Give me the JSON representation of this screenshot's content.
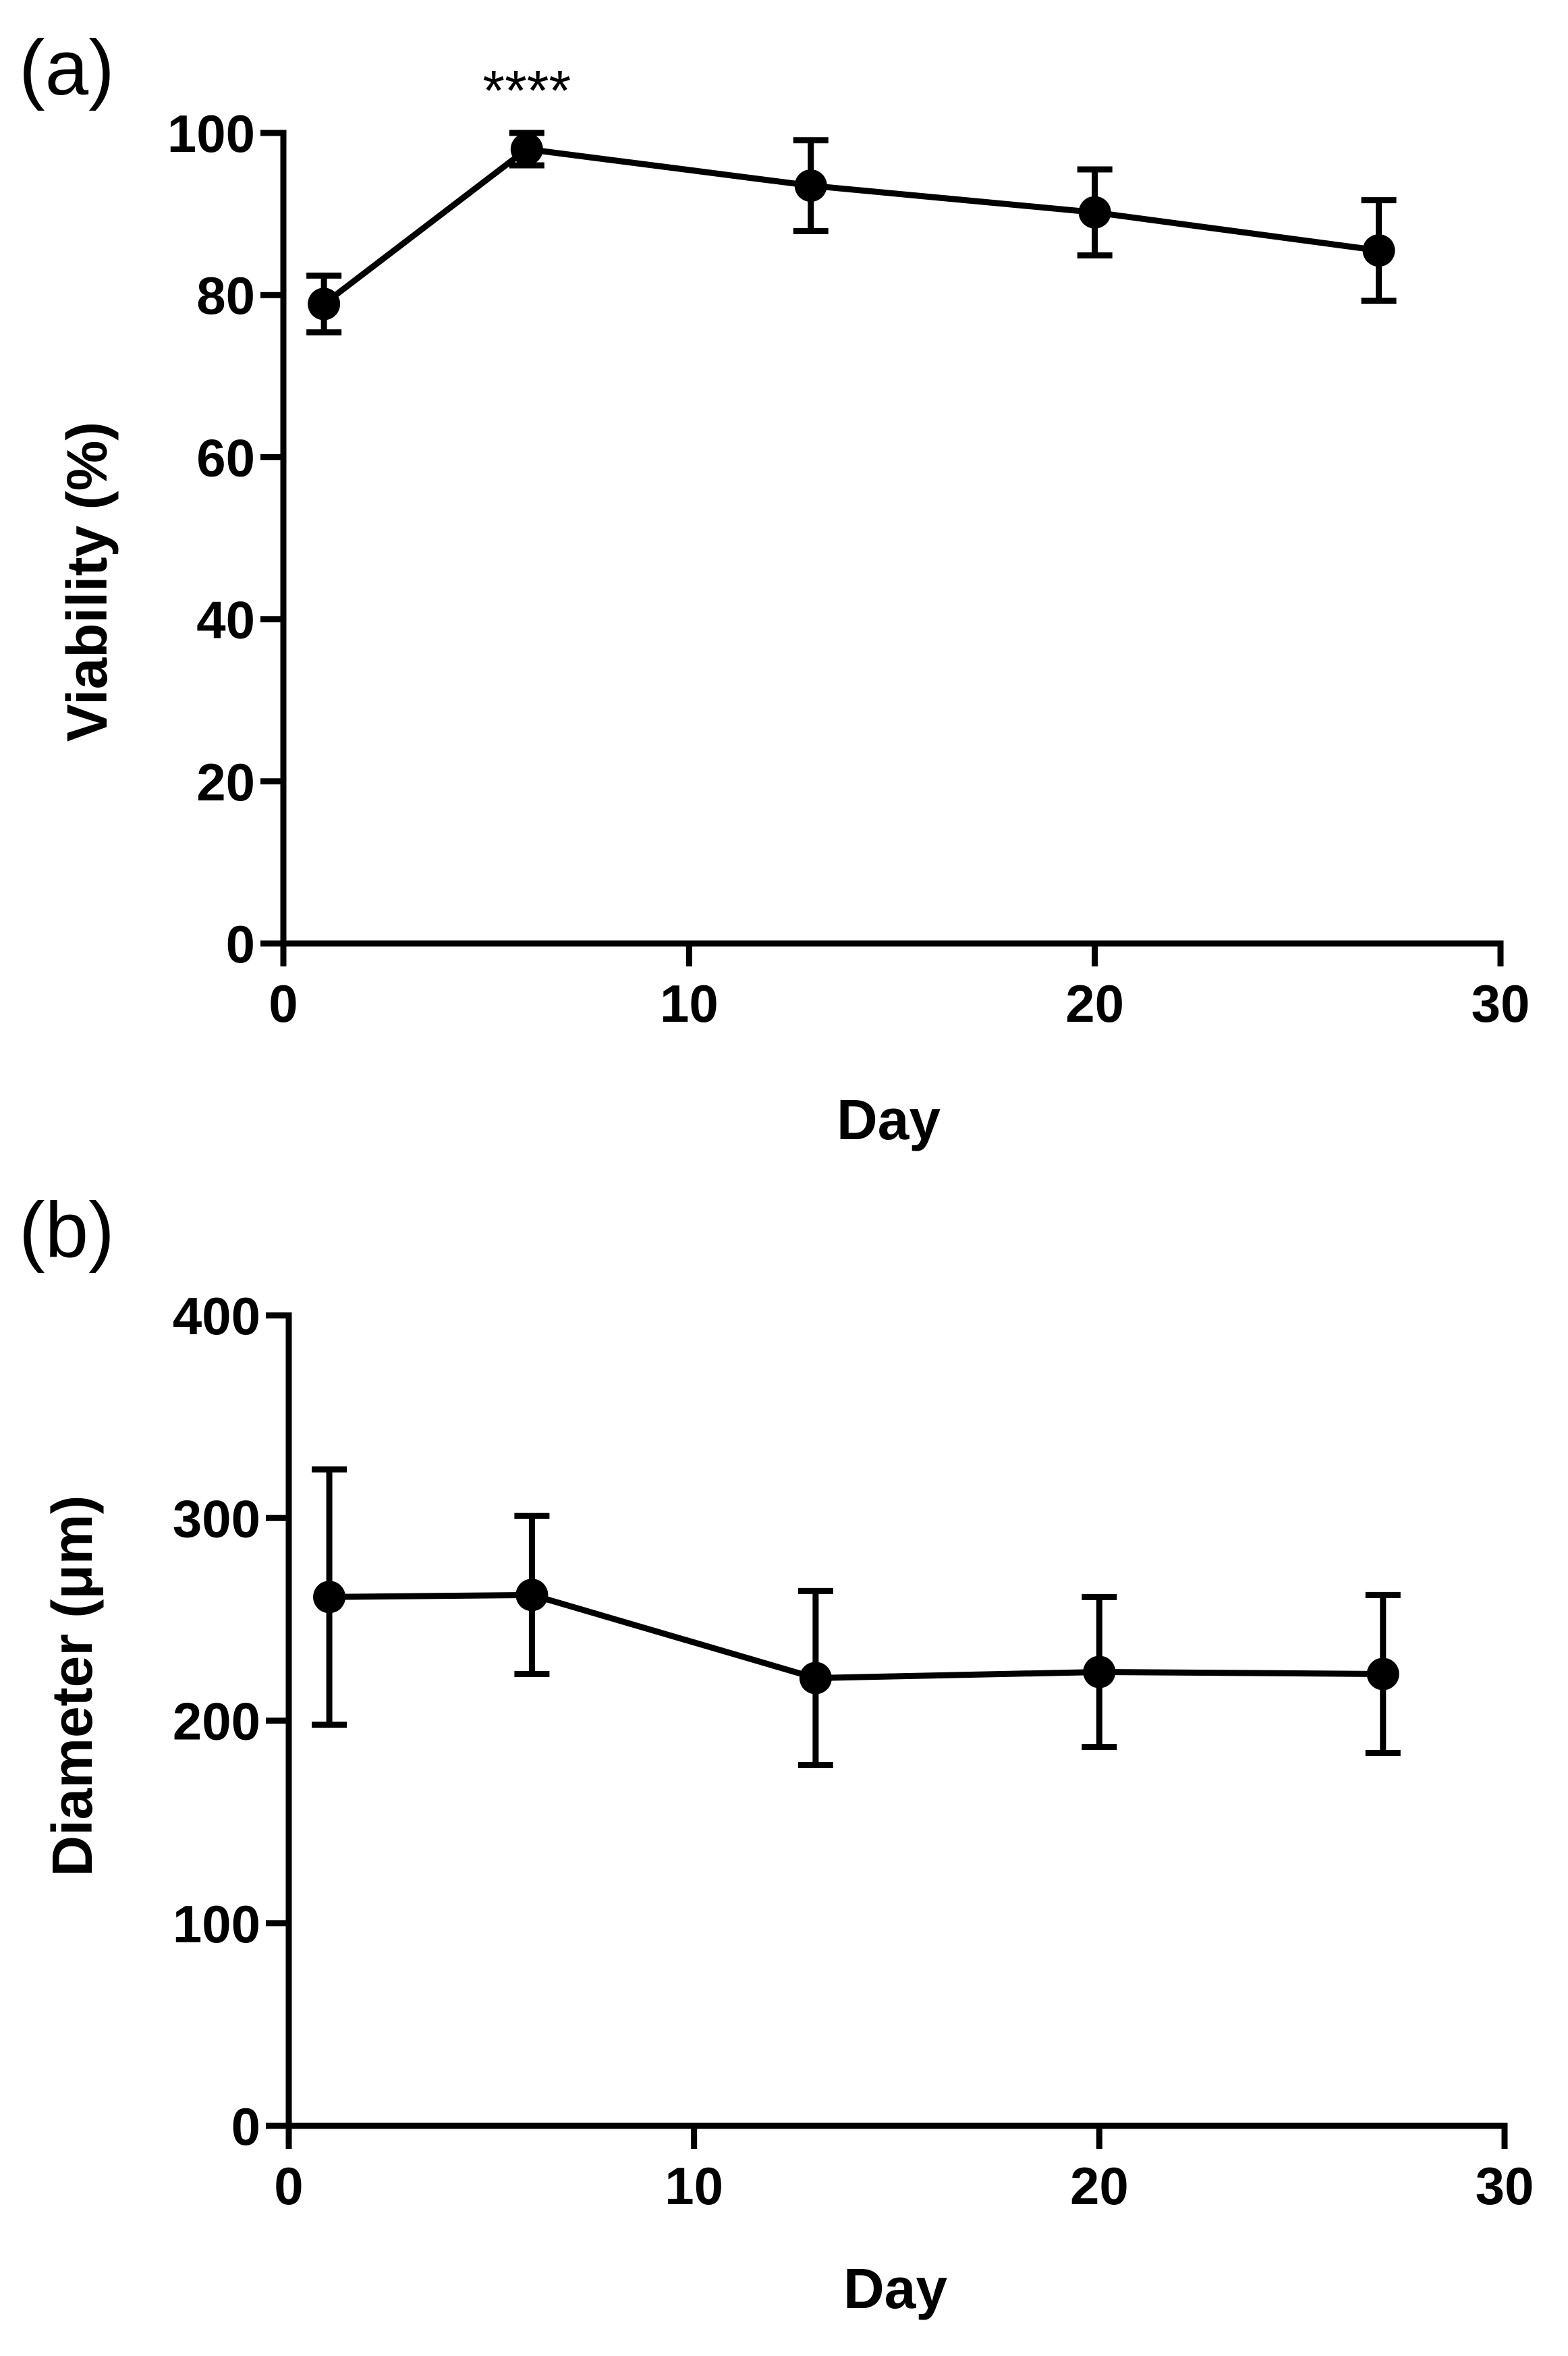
{
  "chart_data": [
    {
      "panel": "(a)",
      "type": "line",
      "xlabel": "Day",
      "ylabel": "Viability (%)",
      "xlim": [
        0,
        30
      ],
      "ylim": [
        0,
        100
      ],
      "xticks": [
        0,
        10,
        20,
        30
      ],
      "yticks": [
        0,
        20,
        40,
        60,
        80,
        100
      ],
      "x": [
        1,
        6,
        13,
        20,
        27
      ],
      "values": [
        78.9,
        98.0,
        93.5,
        90.2,
        85.5
      ],
      "errors": [
        3.5,
        2.0,
        5.6,
        5.3,
        6.2
      ],
      "annotations": [
        {
          "x": 6,
          "text": "****"
        }
      ],
      "grid": false,
      "marker": "circle"
    },
    {
      "panel": "(b)",
      "type": "line",
      "xlabel": "Day",
      "ylabel": "Diameter (μm)",
      "xlim": [
        0,
        30
      ],
      "ylim": [
        0,
        400
      ],
      "xticks": [
        0,
        10,
        20,
        30
      ],
      "yticks": [
        0,
        100,
        200,
        300,
        400
      ],
      "x": [
        1,
        6,
        13,
        20,
        27
      ],
      "values": [
        261,
        262,
        221,
        224,
        223
      ],
      "errors": [
        63,
        39,
        43,
        37,
        39
      ],
      "annotations": [],
      "grid": false,
      "marker": "circle"
    }
  ]
}
